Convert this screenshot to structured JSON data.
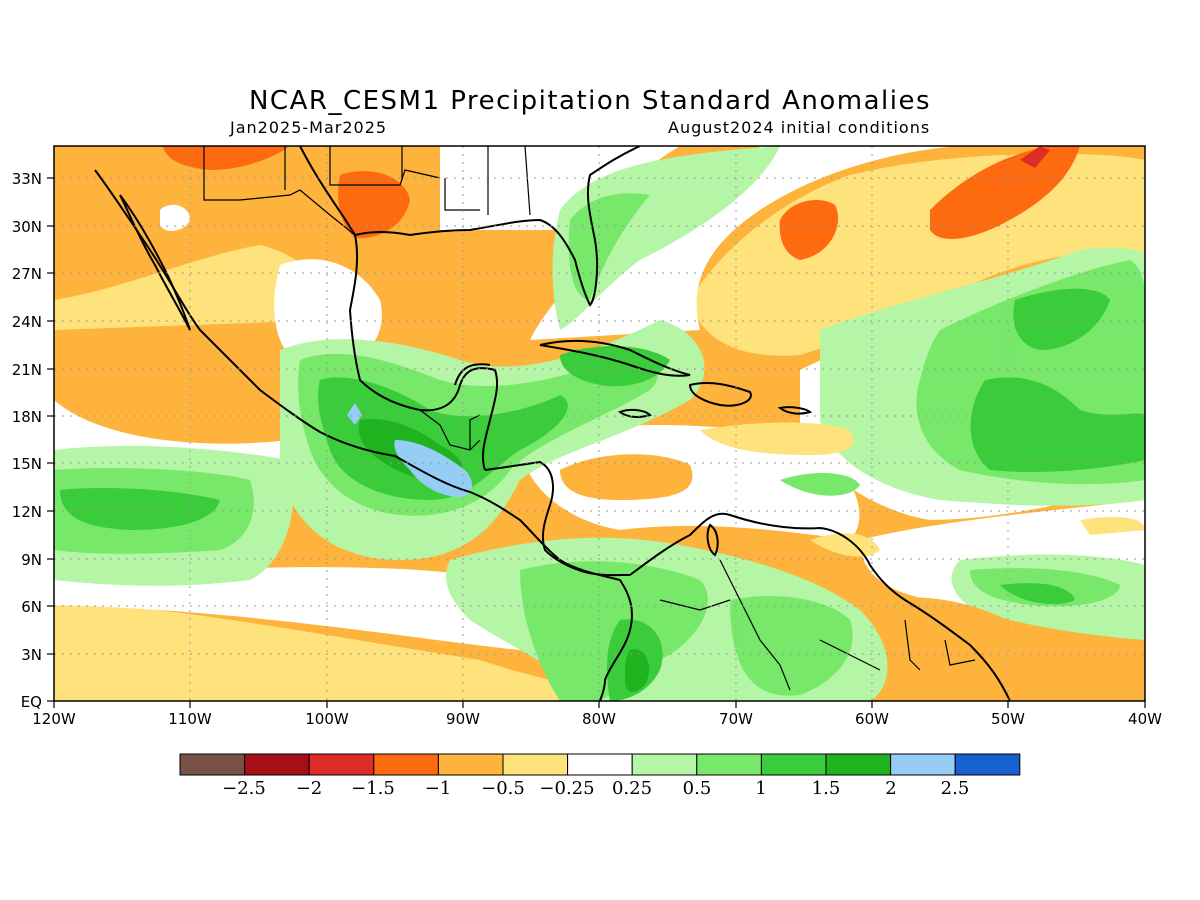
{
  "header": {
    "title": "NCAR_CESM1 Precipitation Standard Anomalies",
    "period": "Jan2025-Mar2025",
    "initial_conditions": "August2024 initial conditions"
  },
  "axes": {
    "lon_ticks": [
      "120W",
      "110W",
      "100W",
      "90W",
      "80W",
      "70W",
      "60W",
      "50W",
      "40W"
    ],
    "lat_ticks": [
      "EQ",
      "3N",
      "6N",
      "9N",
      "12N",
      "15N",
      "18N",
      "21N",
      "24N",
      "27N",
      "30N",
      "33N"
    ],
    "lon_range": [
      -120,
      -40
    ],
    "lat_range": [
      0,
      35
    ],
    "grid": "dotted"
  },
  "colorbar": {
    "colors": [
      "#7a5148",
      "#a50f15",
      "#de2d26",
      "#fe6a10",
      "#fdb33c",
      "#fee27c",
      "#ffffff",
      "#b5f5a6",
      "#78e86a",
      "#3bcc3b",
      "#1fb31f",
      "#95cdf5",
      "#1660cf"
    ],
    "labels": [
      "−2.5",
      "−2",
      "−1.5",
      "−1",
      "−0.5",
      "−0.25",
      "0.25",
      "0.5",
      "1",
      "1.5",
      "2",
      "2.5"
    ]
  },
  "legend_colors": {
    "dry_moderate": "#fdb33c",
    "dry_weak": "#fee27c",
    "dry_strong": "#fe6a10",
    "dry_very": "#de2d26",
    "wet_weak": "#b5f5a6",
    "wet_moderate": "#78e86a",
    "wet_strong": "#3bcc3b",
    "wet_very": "#1fb31f",
    "wet_extreme": "#95cdf5",
    "wet_max": "#1660cf"
  }
}
